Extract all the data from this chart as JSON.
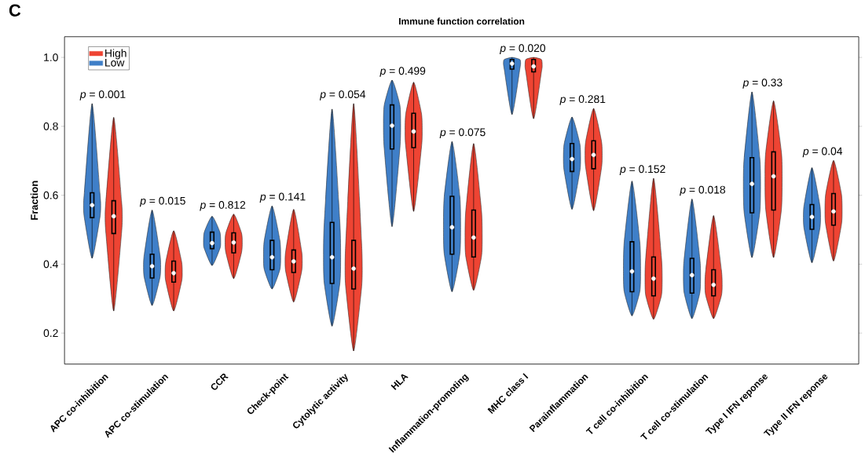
{
  "chart_data": {
    "type": "box",
    "title": "Immune function correlation",
    "ylabel": "Fraction",
    "categories": [
      "APC co-inhibition",
      "APC co-stimulation",
      "CCR",
      "Check-point",
      "Cytolytic activity",
      "HLA",
      "Inflammation-promoting",
      "MHC class I",
      "Parainflammation",
      "T cell co-inhibition",
      "T cell co-stimulation",
      "Type I IFN reponse",
      "Type II IFN reponse"
    ],
    "ylim": [
      0.11,
      1.06
    ],
    "yticks": [
      0.2,
      0.4,
      0.6,
      0.8,
      {
        "value": 1.0,
        "label": "1.0"
      }
    ],
    "legend": "top left",
    "grid": false,
    "series": [
      {
        "name": "Low",
        "color": "#3f7fc8",
        "boxes": [
          {
            "low": 0.417,
            "q1": 0.535,
            "median": 0.571,
            "q3": 0.607,
            "high": 0.866
          },
          {
            "low": 0.28,
            "q1": 0.36,
            "median": 0.394,
            "q3": 0.429,
            "high": 0.557
          },
          {
            "low": 0.396,
            "q1": 0.445,
            "median": 0.461,
            "q3": 0.493,
            "high": 0.539
          },
          {
            "low": 0.328,
            "q1": 0.384,
            "median": 0.42,
            "q3": 0.469,
            "high": 0.569
          },
          {
            "low": 0.22,
            "q1": 0.344,
            "median": 0.42,
            "q3": 0.521,
            "high": 0.85
          },
          {
            "low": 0.509,
            "q1": 0.734,
            "median": 0.802,
            "q3": 0.862,
            "high": 0.934
          },
          {
            "low": 0.32,
            "q1": 0.429,
            "median": 0.507,
            "q3": 0.597,
            "high": 0.756
          },
          {
            "low": 0.834,
            "q1": 0.966,
            "median": 0.982,
            "q3": 0.994,
            "high": 1.0
          },
          {
            "low": 0.559,
            "q1": 0.669,
            "median": 0.705,
            "q3": 0.75,
            "high": 0.827
          },
          {
            "low": 0.25,
            "q1": 0.32,
            "median": 0.379,
            "q3": 0.465,
            "high": 0.641
          },
          {
            "low": 0.242,
            "q1": 0.316,
            "median": 0.368,
            "q3": 0.417,
            "high": 0.589
          },
          {
            "low": 0.419,
            "q1": 0.549,
            "median": 0.633,
            "q3": 0.709,
            "high": 0.9
          },
          {
            "low": 0.404,
            "q1": 0.501,
            "median": 0.537,
            "q3": 0.573,
            "high": 0.68
          }
        ]
      },
      {
        "name": "High",
        "color": "#ee4433",
        "boxes": [
          {
            "low": 0.264,
            "q1": 0.489,
            "median": 0.539,
            "q3": 0.584,
            "high": 0.826
          },
          {
            "low": 0.264,
            "q1": 0.348,
            "median": 0.374,
            "q3": 0.409,
            "high": 0.497
          },
          {
            "low": 0.358,
            "q1": 0.433,
            "median": 0.463,
            "q3": 0.491,
            "high": 0.545
          },
          {
            "low": 0.29,
            "q1": 0.376,
            "median": 0.408,
            "q3": 0.441,
            "high": 0.559
          },
          {
            "low": 0.148,
            "q1": 0.328,
            "median": 0.387,
            "q3": 0.469,
            "high": 0.866
          },
          {
            "low": 0.553,
            "q1": 0.738,
            "median": 0.785,
            "q3": 0.838,
            "high": 0.928
          },
          {
            "low": 0.324,
            "q1": 0.421,
            "median": 0.477,
            "q3": 0.557,
            "high": 0.75
          },
          {
            "low": 0.822,
            "q1": 0.958,
            "median": 0.974,
            "q3": 0.994,
            "high": 1.0
          },
          {
            "low": 0.555,
            "q1": 0.677,
            "median": 0.717,
            "q3": 0.758,
            "high": 0.852
          },
          {
            "low": 0.24,
            "q1": 0.308,
            "median": 0.358,
            "q3": 0.421,
            "high": 0.649
          },
          {
            "low": 0.242,
            "q1": 0.308,
            "median": 0.34,
            "q3": 0.384,
            "high": 0.541
          },
          {
            "low": 0.419,
            "q1": 0.557,
            "median": 0.655,
            "q3": 0.726,
            "high": 0.874
          },
          {
            "low": 0.409,
            "q1": 0.513,
            "median": 0.553,
            "q3": 0.605,
            "high": 0.701
          }
        ]
      }
    ],
    "annotations": [
      "C",
      "*p* = 0.001",
      "*p* = 0.015",
      "*p* = 0.812",
      "*p* = 0.141",
      "*p* = 0.054",
      "*p* = 0.499",
      "*p* = 0.075",
      "*p* = 0.020",
      "*p* = 0.281",
      "*p* = 0.152",
      "*p* = 0.018",
      "*p* = 0.33",
      "*p* = 0.04"
    ]
  }
}
